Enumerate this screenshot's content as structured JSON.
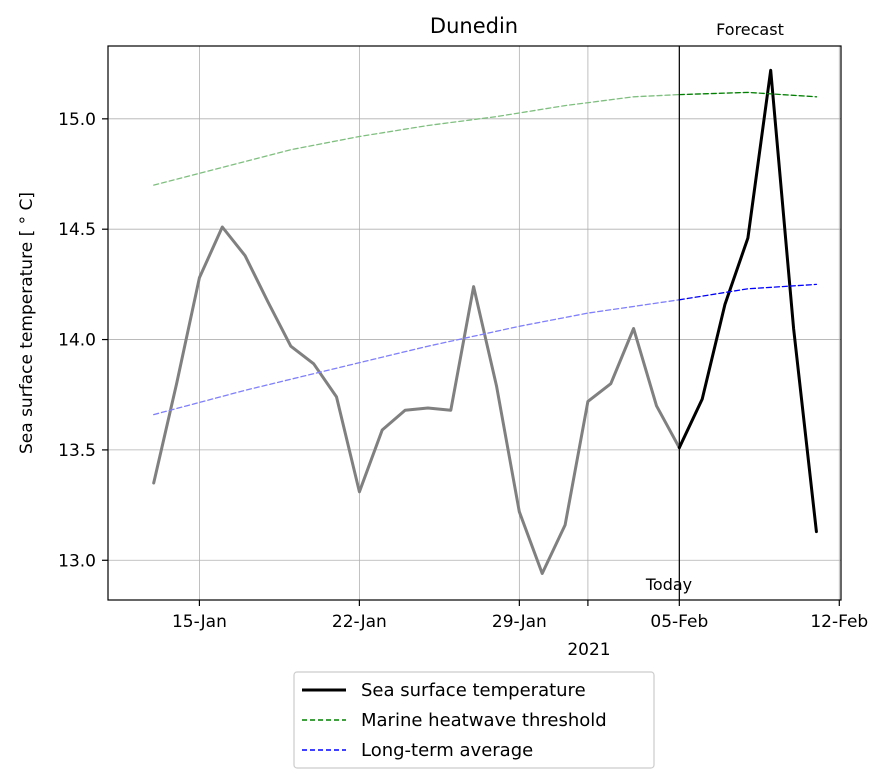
{
  "chart_data": {
    "type": "line",
    "title": "Dunedin",
    "xlabel": "2021",
    "ylabel": "Sea surface temperature [$^\\circ$C]",
    "ylabel_display": "Sea surface temperature [ ° C]",
    "ylim": [
      12.82,
      15.33
    ],
    "yticks": [
      13.0,
      13.5,
      14.0,
      14.5,
      15.0
    ],
    "xlim": [
      "2021-01-11",
      "2021-02-12"
    ],
    "xticks": [
      {
        "date": "2021-01-15",
        "label": "15-Jan"
      },
      {
        "date": "2021-01-22",
        "label": "22-Jan"
      },
      {
        "date": "2021-01-29",
        "label": "29-Jan"
      },
      {
        "date": "2021-02-01",
        "label": ""
      },
      {
        "date": "2021-02-05",
        "label": "05-Feb"
      },
      {
        "date": "2021-02-12",
        "label": "12-Feb"
      }
    ],
    "grid": true,
    "legend_position": "bottom-center",
    "annotations": {
      "today_date": "2021-02-05",
      "today_label": "Today",
      "forecast_label": "Forecast"
    },
    "series": [
      {
        "name": "Sea surface temperature",
        "style": "solid",
        "x": [
          "2021-01-13",
          "2021-01-14",
          "2021-01-15",
          "2021-01-16",
          "2021-01-17",
          "2021-01-18",
          "2021-01-19",
          "2021-01-20",
          "2021-01-21",
          "2021-01-22",
          "2021-01-23",
          "2021-01-24",
          "2021-01-25",
          "2021-01-26",
          "2021-01-27",
          "2021-01-28",
          "2021-01-29",
          "2021-01-30",
          "2021-01-31",
          "2021-02-01",
          "2021-02-02",
          "2021-02-03",
          "2021-02-04",
          "2021-02-05",
          "2021-02-06",
          "2021-02-07",
          "2021-02-08",
          "2021-02-09",
          "2021-02-10",
          "2021-02-11"
        ],
        "values": [
          13.35,
          13.8,
          14.28,
          14.51,
          14.38,
          14.17,
          13.97,
          13.89,
          13.74,
          13.31,
          13.59,
          13.68,
          13.69,
          13.68,
          14.24,
          13.79,
          13.22,
          12.94,
          13.16,
          13.72,
          13.8,
          14.05,
          13.7,
          13.51,
          13.73,
          14.16,
          14.46,
          15.22,
          14.05,
          13.13
        ]
      },
      {
        "name": "Marine heatwave threshold",
        "style": "dashed",
        "x": [
          "2021-01-13",
          "2021-01-16",
          "2021-01-19",
          "2021-01-22",
          "2021-01-25",
          "2021-01-28",
          "2021-01-31",
          "2021-02-03",
          "2021-02-05",
          "2021-02-08",
          "2021-02-11"
        ],
        "values": [
          14.7,
          14.78,
          14.86,
          14.92,
          14.97,
          15.01,
          15.06,
          15.1,
          15.11,
          15.12,
          15.1
        ]
      },
      {
        "name": "Long-term average",
        "style": "dashed",
        "x": [
          "2021-01-13",
          "2021-01-17",
          "2021-01-21",
          "2021-01-25",
          "2021-01-29",
          "2021-02-01",
          "2021-02-05",
          "2021-02-08",
          "2021-02-11"
        ],
        "values": [
          13.66,
          13.77,
          13.87,
          13.97,
          14.06,
          14.12,
          14.18,
          14.23,
          14.25
        ]
      }
    ],
    "colors": {
      "observed": "#808080",
      "forecast": "#000000",
      "threshold_past": "#7fbf7f",
      "threshold_forecast": "#008000",
      "average_past": "#7f7fff",
      "average_forecast": "#0000ff",
      "grid": "#b0b0b0"
    }
  }
}
